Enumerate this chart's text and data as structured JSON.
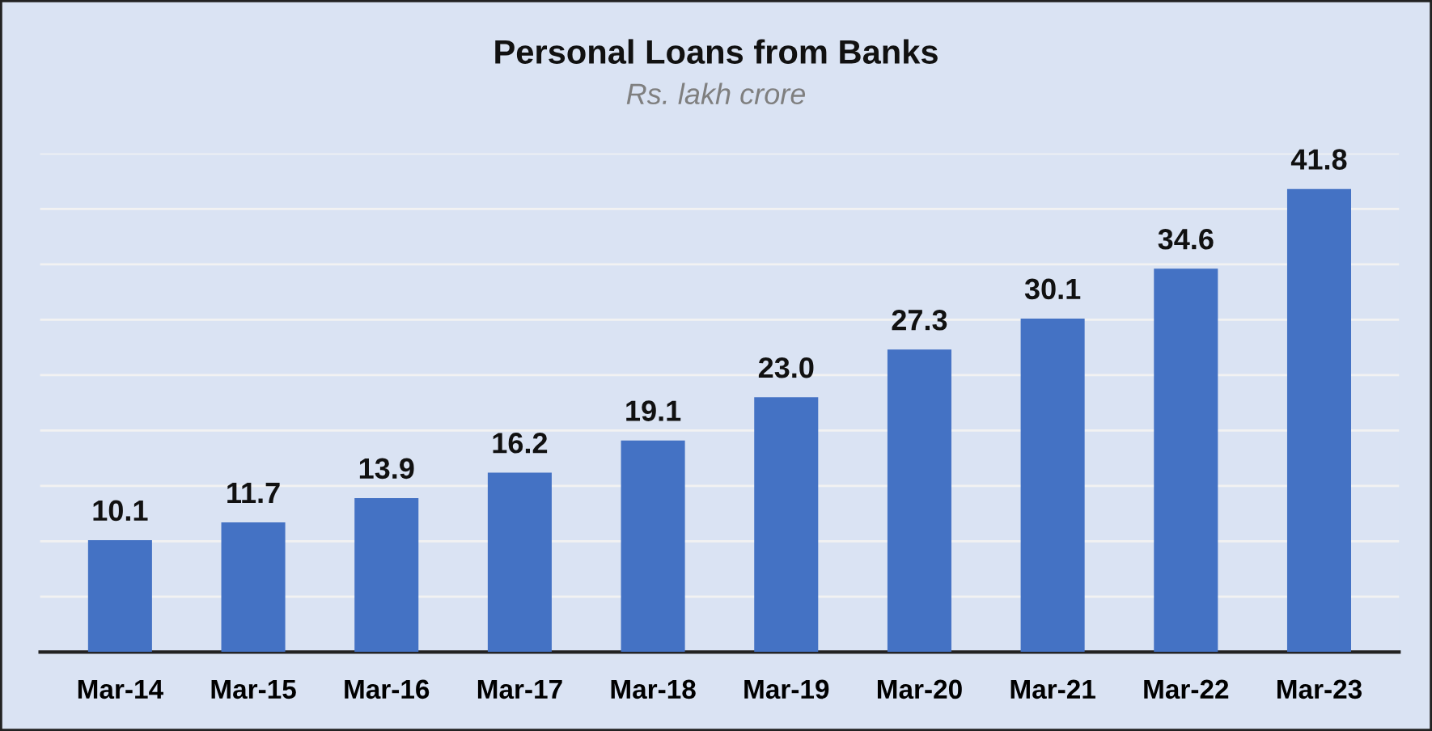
{
  "chart_data": {
    "type": "bar",
    "title": "Personal Loans from Banks",
    "subtitle": "Rs. lakh crore",
    "categories": [
      "Mar-14",
      "Mar-15",
      "Mar-16",
      "Mar-17",
      "Mar-18",
      "Mar-19",
      "Mar-20",
      "Mar-21",
      "Mar-22",
      "Mar-23"
    ],
    "values": [
      10.1,
      11.7,
      13.9,
      16.2,
      19.1,
      23.0,
      27.3,
      30.1,
      34.6,
      41.8
    ],
    "value_labels": [
      "10.1",
      "11.7",
      "13.9",
      "16.2",
      "19.1",
      "23.0",
      "27.3",
      "30.1",
      "34.6",
      "41.8"
    ],
    "color": "#4472c4",
    "ylim": [
      0,
      45
    ],
    "yticks": [
      {
        "value": 0,
        "label": null
      },
      {
        "value": 5,
        "label": null
      },
      {
        "value": 10,
        "label": null
      },
      {
        "value": 15,
        "label": null
      },
      {
        "value": 20,
        "label": null
      },
      {
        "value": 25,
        "label": null
      },
      {
        "value": 30,
        "label": null
      },
      {
        "value": 35,
        "label": null
      },
      {
        "value": 40,
        "label": null
      },
      {
        "value": 45,
        "label": null
      }
    ],
    "grid": "y",
    "tick_labels": "x"
  }
}
